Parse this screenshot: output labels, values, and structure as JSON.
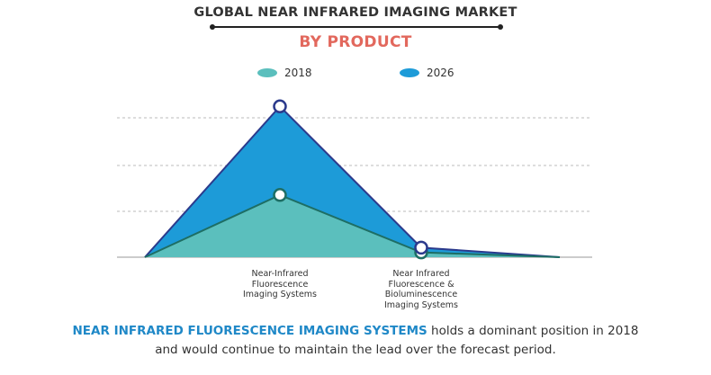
{
  "header": {
    "title": "GLOBAL NEAR INFRARED IMAGING MARKET",
    "subtitle": "BY PRODUCT"
  },
  "colors": {
    "series_2018_fill": "#5bbfbd",
    "series_2018_line": "#1e6e64",
    "series_2026_fill": "#1d9bd8",
    "series_2026_line": "#2b3a8c",
    "gridline": "#bbbbbb",
    "highlight": "#1f88c7"
  },
  "chart_data": {
    "type": "area",
    "categories": [
      "",
      "Near-Infrared\nFluorescence\nImaging Systems",
      "Near Infrared\nFluorescence &\nBioluminescence\nImaging Systems",
      ""
    ],
    "series": [
      {
        "name": "2018",
        "values": [
          0,
          26,
          2,
          0
        ]
      },
      {
        "name": "2026",
        "values": [
          0,
          63,
          4,
          0
        ]
      }
    ],
    "ylim": [
      0,
      68
    ],
    "grid": true,
    "legend": "top-center"
  },
  "caption": {
    "highlight": "NEAR INFRARED FLUORESCENCE IMAGING SYSTEMS",
    "rest_line1": " holds a dominant position in 2018",
    "line2": "and would continue to maintain the lead over the forecast period."
  }
}
